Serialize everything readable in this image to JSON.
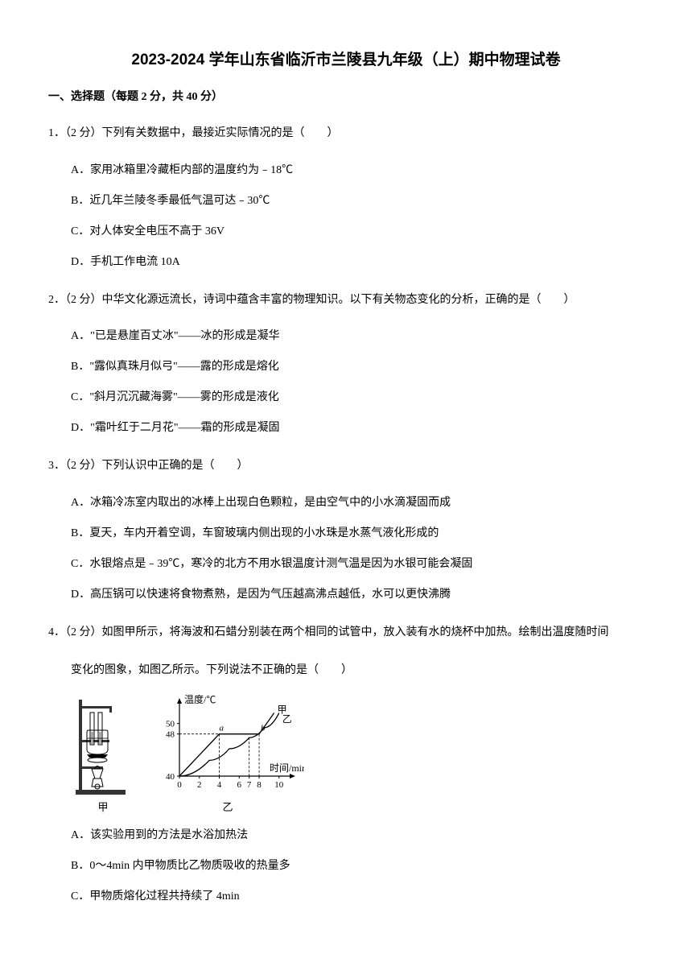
{
  "title": "2023-2024 学年山东省临沂市兰陵县九年级（上）期中物理试卷",
  "section": "一、选择题（每题 2 分，共 40 分）",
  "q1": {
    "stem": "1．（2 分）下列有关数据中，最接近实际情况的是（　　）",
    "A": "A．家用冰箱里冷藏柜内部的温度约为﹣18℃",
    "B": "B．近几年兰陵冬季最低气温可达﹣30℃",
    "C": "C．对人体安全电压不高于 36V",
    "D": "D．手机工作电流 10A"
  },
  "q2": {
    "stem": "2．（2 分）中华文化源远流长，诗词中蕴含丰富的物理知识。以下有关物态变化的分析，正确的是（　　）",
    "A": "A．\"已是悬崖百丈冰\"——冰的形成是凝华",
    "B": "B．\"露似真珠月似弓\"——露的形成是熔化",
    "C": "C．\"斜月沉沉藏海雾\"——雾的形成是液化",
    "D": "D．\"霜叶红于二月花\"——霜的形成是凝固"
  },
  "q3": {
    "stem": "3．（2 分）下列认识中正确的是（　　）",
    "A": "A．冰箱冷冻室内取出的冰棒上出现白色颗粒，是由空气中的小水滴凝固而成",
    "B": "B．夏天，车内开着空调，车窗玻璃内侧出现的小水珠是水蒸气液化形成的",
    "C": "C．水银熔点是﹣39℃，寒冷的北方不用水银温度计测气温是因为水银可能会凝固",
    "D": "D．高压锅可以快速将食物煮熟，是因为气压越高沸点越低，水可以更快沸腾"
  },
  "q4": {
    "stem1": "4．（2 分）如图甲所示，将海波和石蜡分别装在两个相同的试管中，放入装有水的烧杯中加热。绘制出温度随时间",
    "stem2": "变化的图象，如图乙所示。下列说法不正确的是（　　）",
    "A": "A．该实验用到的方法是水浴加热法",
    "B": "B．0～4min 内甲物质比乙物质吸收的热量多",
    "C": "C．甲物质熔化过程共持续了 4min"
  },
  "chart": {
    "type": "line",
    "ylabel": "温度/℃",
    "xlabel": "时间/min",
    "yticks": [
      40,
      48,
      50
    ],
    "ytick_labels": [
      "40",
      "48",
      "50"
    ],
    "xticks": [
      0,
      2,
      4,
      6,
      7,
      8,
      10
    ],
    "xtick_labels": [
      "0",
      "2",
      "4",
      "6",
      "7",
      "8",
      "10"
    ],
    "point_a": "a",
    "point_b": "b",
    "series_jia_label": "甲",
    "series_yi_label": "乙",
    "axis_color": "#000000",
    "line_color": "#000000",
    "dash_color": "#000000",
    "background": "#ffffff",
    "jia_points": [
      [
        0,
        40
      ],
      [
        4,
        48
      ],
      [
        8,
        48
      ],
      [
        9.5,
        52
      ]
    ],
    "yi_points": [
      [
        0,
        40
      ],
      [
        3,
        43
      ],
      [
        5,
        45.2
      ],
      [
        7,
        47.3
      ],
      [
        8.5,
        49.2
      ],
      [
        10,
        52
      ]
    ]
  },
  "figure_labels": {
    "jia": "甲",
    "yi": "乙"
  }
}
